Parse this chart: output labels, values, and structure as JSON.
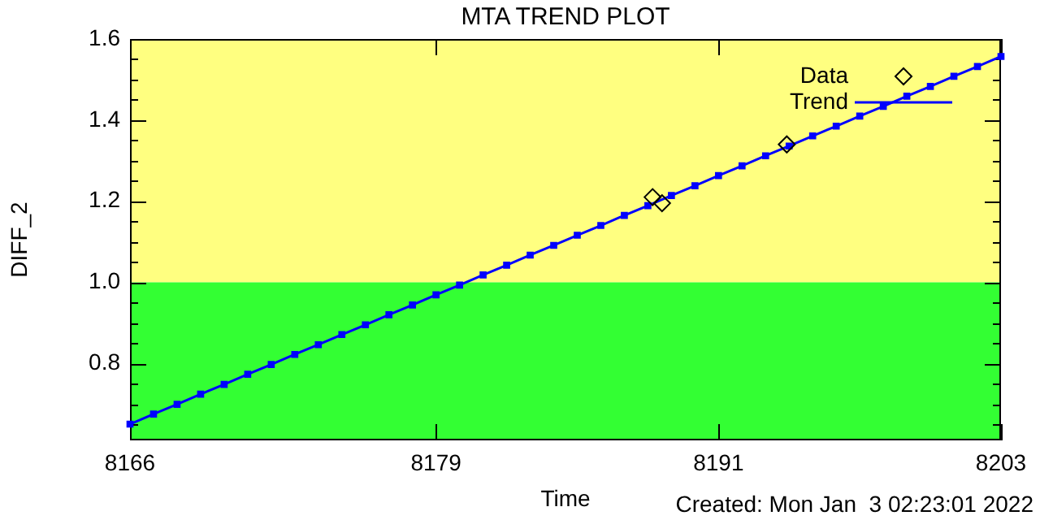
{
  "chart_data": {
    "type": "scatter",
    "title": "MTA TREND PLOT",
    "xlabel": "Time",
    "ylabel": "DIFF_2",
    "annotations": [
      "Created: Mon Jan  3 02:23:01 2022"
    ],
    "xlim": [
      8166,
      8203
    ],
    "xticks": [
      8166,
      8179,
      8191,
      8203
    ],
    "ylim": [
      0.61,
      1.6
    ],
    "yticks": [
      {
        "value": 0.65,
        "label": null
      },
      {
        "value": 0.7,
        "label": null
      },
      {
        "value": 0.75,
        "label": null
      },
      {
        "value": 0.8,
        "label": "0.8"
      },
      {
        "value": 0.85,
        "label": null
      },
      {
        "value": 0.9,
        "label": null
      },
      {
        "value": 0.95,
        "label": null
      },
      {
        "value": 1.0,
        "label": "1.0"
      },
      {
        "value": 1.05,
        "label": null
      },
      {
        "value": 1.1,
        "label": null
      },
      {
        "value": 1.15,
        "label": null
      },
      {
        "value": 1.2,
        "label": "1.2"
      },
      {
        "value": 1.25,
        "label": null
      },
      {
        "value": 1.3,
        "label": null
      },
      {
        "value": 1.35,
        "label": null
      },
      {
        "value": 1.4,
        "label": "1.4"
      },
      {
        "value": 1.45,
        "label": null
      },
      {
        "value": 1.5,
        "label": null
      },
      {
        "value": 1.55,
        "label": null
      },
      {
        "value": 1.6,
        "label": "1.6"
      }
    ],
    "bands": [
      {
        "axis": "y",
        "from": 1.0,
        "to": 1.6,
        "color": "#ffff80"
      },
      {
        "axis": "y",
        "from": 0.61,
        "to": 1.0,
        "color": "#33ff33"
      }
    ],
    "legend": "top right",
    "series": [
      {
        "name": "Data",
        "marker": "diamond",
        "color": "#000000",
        "x": [
          8188.2,
          8188.6,
          8193.9
        ],
        "values": [
          1.21,
          1.195,
          1.34
        ]
      },
      {
        "name": "Trend",
        "type": "line",
        "marker": "square",
        "color": "#0000ff",
        "x": [
          8166,
          8167,
          8168,
          8169,
          8170,
          8171,
          8172,
          8173,
          8174,
          8175,
          8176,
          8177,
          8178,
          8179,
          8180,
          8181,
          8182,
          8183,
          8184,
          8185,
          8186,
          8187,
          8188,
          8189,
          8190,
          8191,
          8192,
          8193,
          8194,
          8195,
          8196,
          8197,
          8198,
          8199,
          8200,
          8201,
          8202,
          8203
        ],
        "values": [
          0.65,
          0.675,
          0.699,
          0.724,
          0.748,
          0.773,
          0.797,
          0.822,
          0.846,
          0.871,
          0.895,
          0.92,
          0.944,
          0.969,
          0.993,
          1.018,
          1.042,
          1.067,
          1.091,
          1.116,
          1.14,
          1.165,
          1.189,
          1.214,
          1.238,
          1.263,
          1.287,
          1.312,
          1.336,
          1.361,
          1.385,
          1.41,
          1.434,
          1.459,
          1.483,
          1.508,
          1.532,
          1.557
        ]
      }
    ]
  }
}
